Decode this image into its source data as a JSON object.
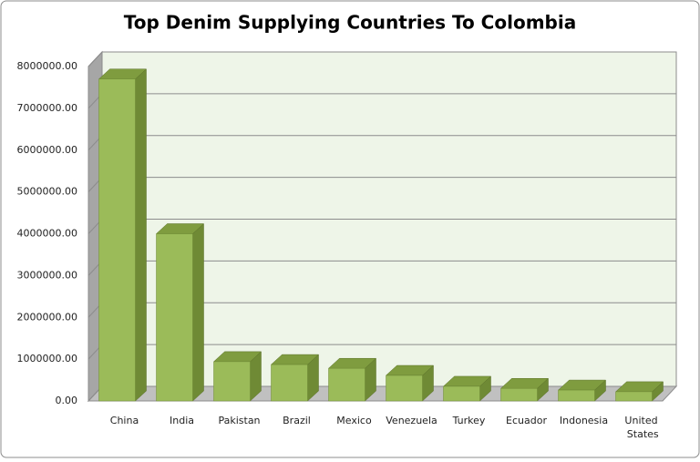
{
  "chart_data": {
    "type": "bar3d",
    "title": "Top Denim Supplying Countries To Colombia",
    "categories": [
      "China",
      "India",
      "Pakistan",
      "Brazil",
      "Mexico",
      "Venezuela",
      "Turkey",
      "Ecuador",
      "Indonesia",
      "United States"
    ],
    "values": [
      7700000,
      4000000,
      940000,
      870000,
      780000,
      610000,
      350000,
      300000,
      260000,
      220000
    ],
    "color": "#9bbb59",
    "ylim": [
      0,
      8000000
    ],
    "yticks": [
      {
        "value": 0,
        "label": "0.00"
      },
      {
        "value": 1000000,
        "label": "1000000.00"
      },
      {
        "value": 2000000,
        "label": "2000000.00"
      },
      {
        "value": 3000000,
        "label": "3000000.00"
      },
      {
        "value": 4000000,
        "label": "4000000.00"
      },
      {
        "value": 5000000,
        "label": "5000000.00"
      },
      {
        "value": 6000000,
        "label": "6000000.00"
      },
      {
        "value": 7000000,
        "label": "7000000.00"
      },
      {
        "value": 8000000,
        "label": "8000000.00"
      }
    ],
    "grid": true
  }
}
